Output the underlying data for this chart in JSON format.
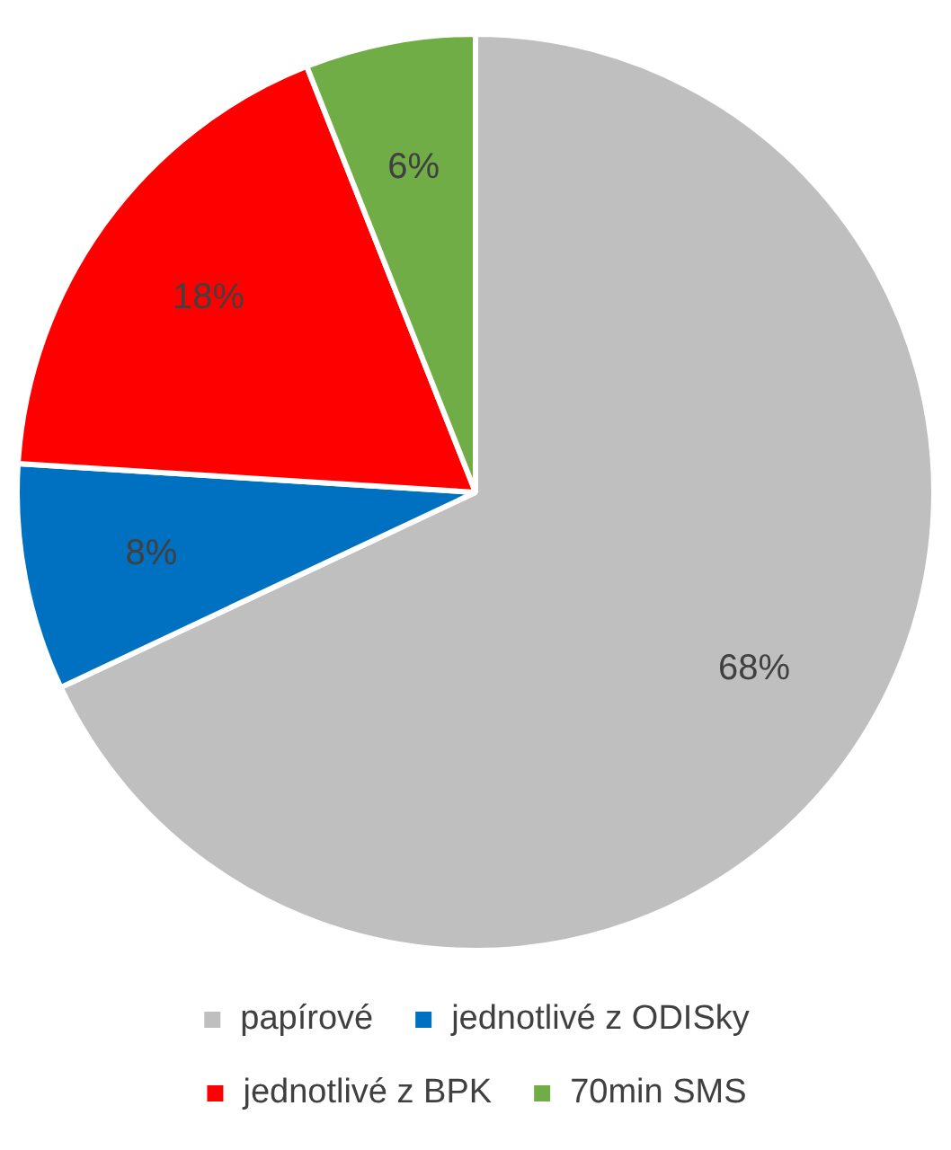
{
  "chart_data": {
    "type": "pie",
    "categories": [
      "papírové",
      "jednotlivé z ODISky",
      "jednotlivé z BPK",
      "70min SMS"
    ],
    "values": [
      68,
      8,
      18,
      6
    ],
    "colors": [
      "#bfbfbf",
      "#0070c0",
      "#ff0000",
      "#70ad47"
    ],
    "value_labels": [
      "68%",
      "8%",
      "18%",
      "6%"
    ],
    "legend": "bottom"
  }
}
